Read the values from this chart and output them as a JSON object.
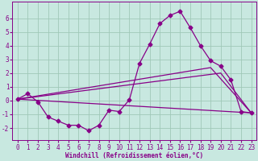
{
  "xlabel": "Windchill (Refroidissement éolien,°C)",
  "background_color": "#c8e8e0",
  "grid_color": "#a0c8b8",
  "line_color": "#880088",
  "x_ticks": [
    0,
    1,
    2,
    3,
    4,
    5,
    6,
    7,
    8,
    9,
    10,
    11,
    12,
    13,
    14,
    15,
    16,
    17,
    18,
    19,
    20,
    21,
    22,
    23
  ],
  "y_ticks": [
    -2,
    -1,
    0,
    1,
    2,
    3,
    4,
    5,
    6
  ],
  "xlim": [
    -0.5,
    23.5
  ],
  "ylim": [
    -2.9,
    7.2
  ],
  "series1_x": [
    0,
    1,
    2,
    3,
    4,
    5,
    6,
    7,
    8,
    9,
    10,
    11,
    12,
    13,
    14,
    15,
    16,
    17,
    18,
    19,
    20,
    21,
    22,
    23
  ],
  "series1_y": [
    0.1,
    0.5,
    -0.1,
    -1.2,
    -1.5,
    -1.8,
    -1.8,
    -2.2,
    -1.8,
    -0.7,
    -0.8,
    0.05,
    2.7,
    4.1,
    5.6,
    6.2,
    6.5,
    5.3,
    4.0,
    2.9,
    2.5,
    1.5,
    -0.8,
    -0.9
  ],
  "series2_x": [
    0,
    23
  ],
  "series2_y": [
    0.1,
    -0.9
  ],
  "series3_x": [
    0,
    19,
    23
  ],
  "series3_y": [
    0.1,
    2.4,
    -0.9
  ],
  "series4_x": [
    0,
    20,
    23
  ],
  "series4_y": [
    0.1,
    2.0,
    -0.9
  ],
  "marker_style": "D",
  "marker_size": 2.5,
  "line_width": 0.9,
  "xlabel_fontsize": 5.5,
  "tick_fontsize": 5.5
}
